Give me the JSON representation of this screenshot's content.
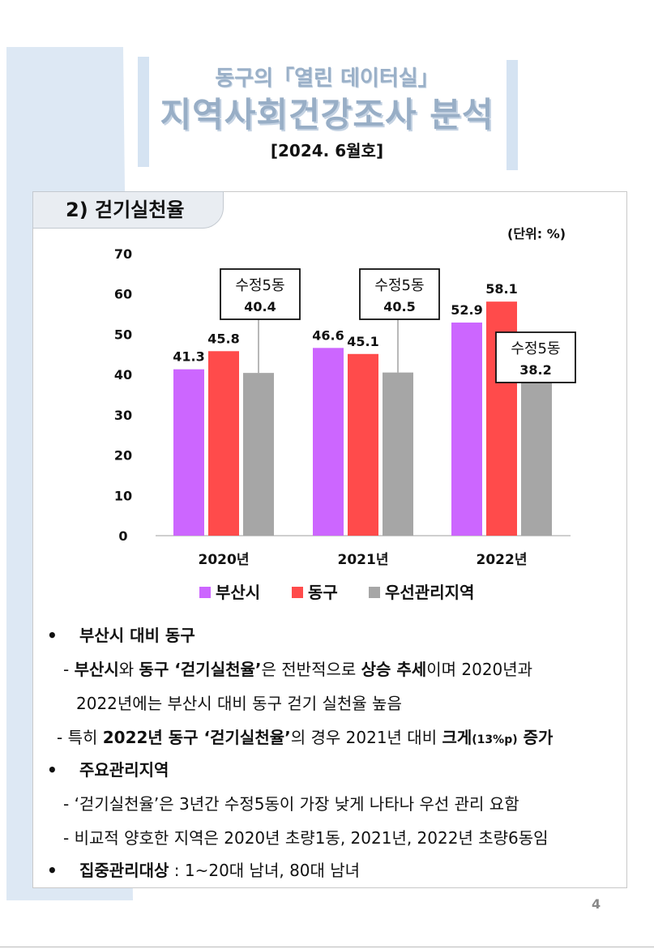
{
  "header": {
    "subtitle": "동구의「열린 데이터실」",
    "title": "지역사회건강조사 분석",
    "date": "[2024. 6월호]"
  },
  "section": {
    "title": "2) 걷기실천율",
    "unit": "(단위: %)"
  },
  "chart_data": {
    "type": "bar",
    "categories": [
      "2020년",
      "2021년",
      "2022년"
    ],
    "series": [
      {
        "name": "부산시",
        "values": [
          41.3,
          46.6,
          52.9
        ],
        "color": "#cc66ff"
      },
      {
        "name": "동구",
        "values": [
          45.8,
          45.1,
          58.1
        ],
        "color": "#ff4b4b"
      },
      {
        "name": "우선관리지역",
        "values": [
          40.4,
          40.5,
          38.2
        ],
        "color": "#a6a6a6"
      }
    ],
    "callouts": [
      {
        "category": "2020년",
        "name": "수정5동",
        "value": "40.4"
      },
      {
        "category": "2021년",
        "name": "수정5동",
        "value": "40.5"
      },
      {
        "category": "2022년",
        "name": "수정5동",
        "value": "38.2"
      }
    ],
    "yticks": [
      0,
      10,
      20,
      30,
      40,
      50,
      60,
      70
    ],
    "ylim": [
      0,
      70
    ],
    "legend_position": "bottom",
    "grid": false
  },
  "bullets": {
    "b1_title": "부산시 대비 동구",
    "b1_l1": [
      "- ",
      "부산시",
      "와 ",
      "동구 ‘걷기실천율’",
      "은 전반적으로 ",
      "상승 추세",
      "이며 2020년과"
    ],
    "b1_l2": "2022년에는 부산시 대비 동구 걷기 실천율 높음",
    "b1_l3": [
      "- 특히 ",
      "2022년 동구 ‘걷기실천율’",
      "의 경우 2021년 대비 ",
      "크게",
      "(13%p)",
      " 증가"
    ],
    "b2_title": "주요관리지역",
    "b2_l1": "- ‘걷기실천율’은 3년간 수정5동이 가장 낮게 나타나 우선 관리 요함",
    "b2_l2": "- 비교적 양호한 지역은 2020년 초량1동, 2021년, 2022년 초량6동임",
    "b3_title": "집중관리대상",
    "b3_text": " : 1~20대 남녀, 80대 남녀",
    "bullet_symbol": "•"
  },
  "page": {
    "number": "4"
  }
}
